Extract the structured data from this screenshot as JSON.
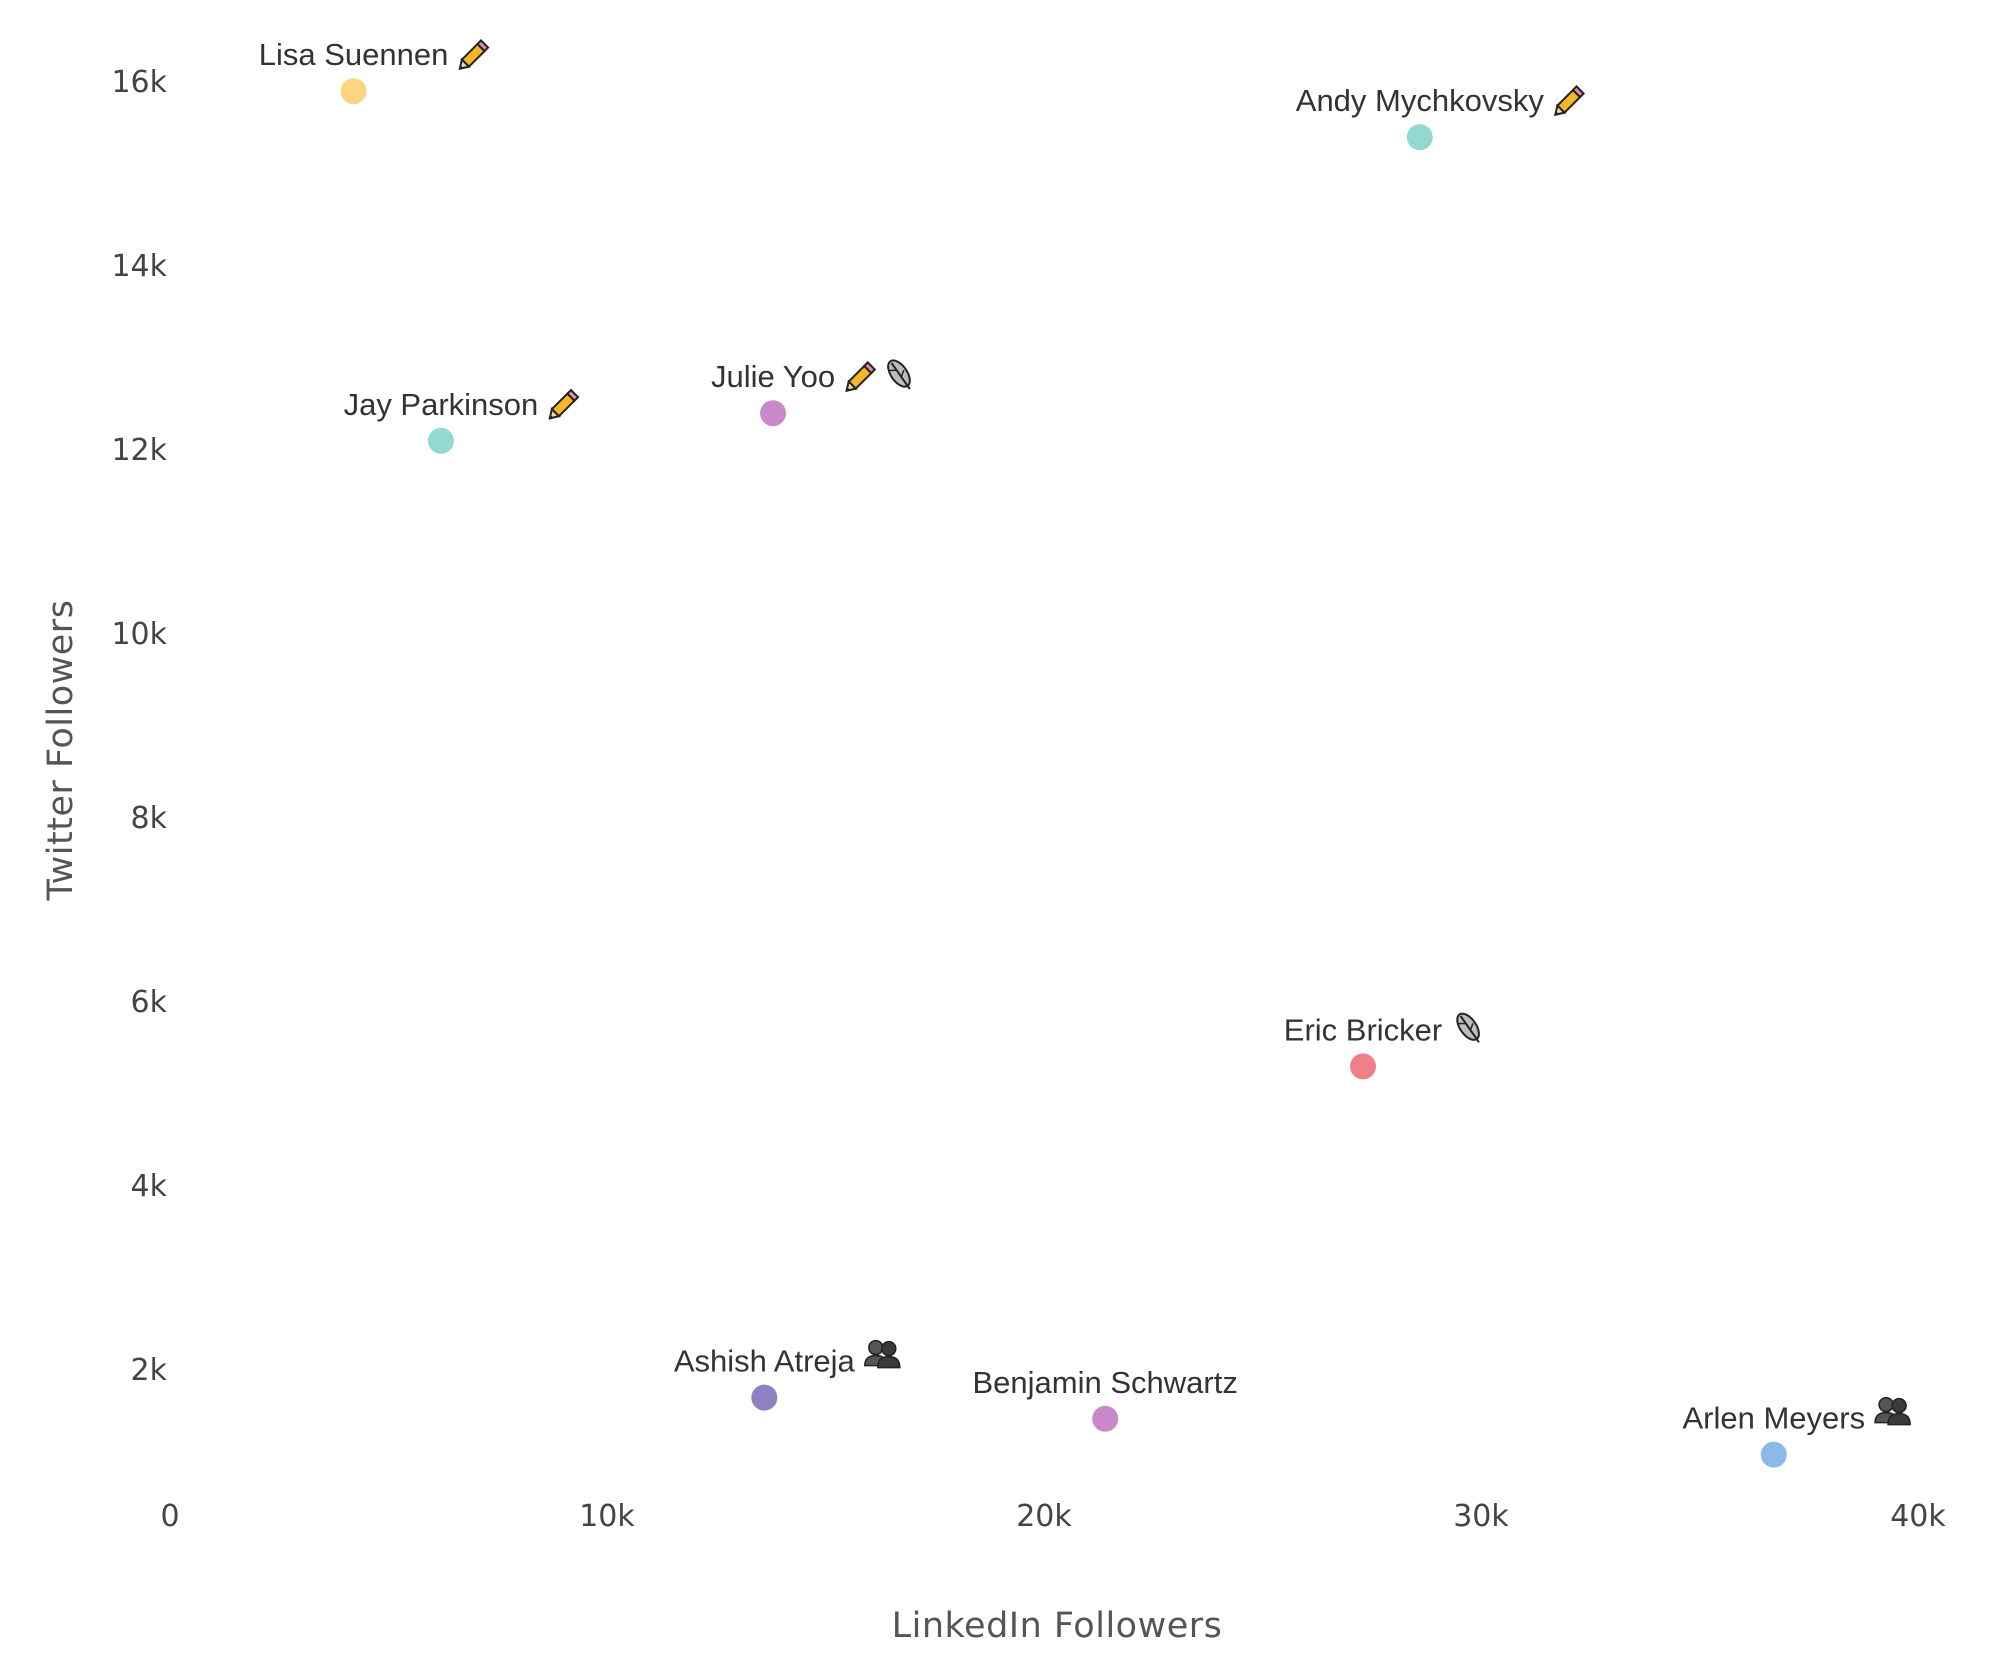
{
  "chart_data": {
    "type": "scatter",
    "xlabel": "LinkedIn Followers",
    "ylabel": "Twitter Followers",
    "xlim": [
      0,
      40000
    ],
    "ylim": [
      860,
      16400
    ],
    "x_ticks": [
      0,
      10000,
      20000,
      30000,
      40000
    ],
    "x_tick_labels": [
      "0",
      "10k",
      "20k",
      "30k",
      "40k"
    ],
    "y_ticks": [
      2000,
      4000,
      6000,
      8000,
      10000,
      12000,
      14000,
      16000
    ],
    "y_tick_labels": [
      "2k",
      "4k",
      "6k",
      "8k",
      "10k",
      "12k",
      "14k",
      "16k"
    ],
    "grid": false,
    "points": [
      {
        "name": "Lisa Suennen",
        "x": 4200,
        "y": 15900,
        "color": "#fcd581",
        "icons": [
          "pencil-icon"
        ]
      },
      {
        "name": "Andy Mychkovsky",
        "x": 28600,
        "y": 15400,
        "color": "#93d9d0",
        "icons": [
          "pencil-icon"
        ]
      },
      {
        "name": "Jay Parkinson",
        "x": 6200,
        "y": 12100,
        "color": "#93d9d0",
        "icons": [
          "pencil-icon"
        ]
      },
      {
        "name": "Julie Yoo",
        "x": 13800,
        "y": 12400,
        "color": "#c988c9",
        "icons": [
          "pencil-icon",
          "feather-icon"
        ]
      },
      {
        "name": "Eric Bricker",
        "x": 27300,
        "y": 5300,
        "color": "#f08087",
        "icons": [
          "feather-icon"
        ]
      },
      {
        "name": "Ashish Atreja",
        "x": 13600,
        "y": 1700,
        "color": "#8f80c2",
        "icons": [
          "people-icon"
        ]
      },
      {
        "name": "Benjamin Schwartz",
        "x": 21400,
        "y": 1470,
        "color": "#c988c9",
        "icons": []
      },
      {
        "name": "Arlen Meyers",
        "x": 36700,
        "y": 1080,
        "color": "#8bb9ea",
        "icons": [
          "people-icon"
        ]
      }
    ]
  }
}
